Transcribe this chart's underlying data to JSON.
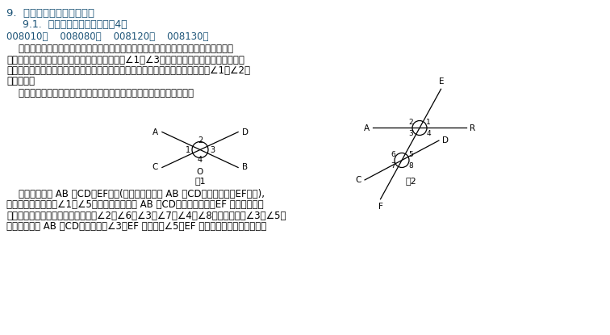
{
  "title1": "9.  相交线、平行线（分类）",
  "title2": "9.1.  相交线（包含题目总数：4）",
  "codes": "008010；    008080；    008120；    008130；",
  "para1_lines": [
    "    两条直线相交，可以得到四个角，我们把两条直线相交所构成的四个角中，有公共顶点",
    "但没有公共边的两个角叫做对顶角．如图１中的∠1与∠3就是对顶角．我们把两条直线相交",
    "所构成的四个角中，有公共顶点且有一条公共边的两个角叫做邻补角．如图１中的∠1与∠2就",
    "是邻补角．"
  ],
  "para2": "    这样可以得到邻补角和对顶角的重要性质：邻补角互补，对顶角相等．",
  "fig1_label": "图1",
  "fig2_label": "图2",
  "para3_lines": [
    "    如图２，直线 AB 、CD与EF相交(或者说两条直线 AB 、CD被第三条直线EF所截),",
    "构成八个角．其中像∠1与∠5，这两个角分别在 AB 、CD的上方，并且在EF 的右侧，像这",
    "样位置相同的一对角叫做同位角．如∠2与∠6，∠3与∠7，∠4与∠8都是同位角；∠3与∠5，",
    "这两个角都在 AB 、CD之间，并且∠3在EF 的左侧，∠5在EF 的右侧，像这样的角叫做内"
  ],
  "bg_color": "#ffffff",
  "title1_color": "#1a5276",
  "title2_color": "#1a5276",
  "codes_color": "#1a5276",
  "text_color": "#000000"
}
